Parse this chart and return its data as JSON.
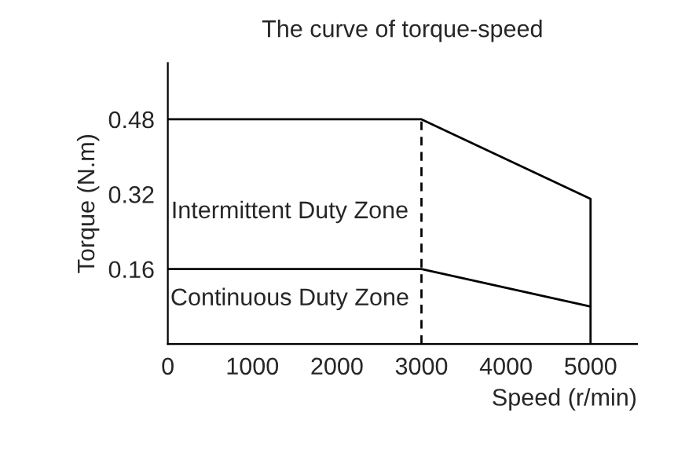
{
  "chart_data": {
    "type": "line",
    "title": "The curve of torque-speed",
    "xlabel": "Speed (r/min)",
    "ylabel": "Torque (N.m)",
    "xlim": [
      0,
      5550
    ],
    "ylim": [
      0,
      0.6
    ],
    "xticks": [
      0,
      1000,
      2000,
      3000,
      4000,
      5000
    ],
    "yticks": [
      0.16,
      0.32,
      0.48
    ],
    "grid": false,
    "marker": "none",
    "series": [
      {
        "color": "#000000",
        "x": [
          0,
          3000,
          5000,
          5000
        ],
        "values": [
          0.48,
          0.48,
          0.31,
          0
        ]
      },
      {
        "color": "#000000",
        "x": [
          0,
          3000,
          5000
        ],
        "values": [
          0.16,
          0.16,
          0.08
        ]
      }
    ],
    "ref_lines": [
      {
        "axis": "x",
        "value": 3000,
        "color": "#000000",
        "line_style": "dashed"
      }
    ],
    "annotations": [
      "Intermittent Duty Zone",
      "Continuous Duty Zone"
    ]
  }
}
